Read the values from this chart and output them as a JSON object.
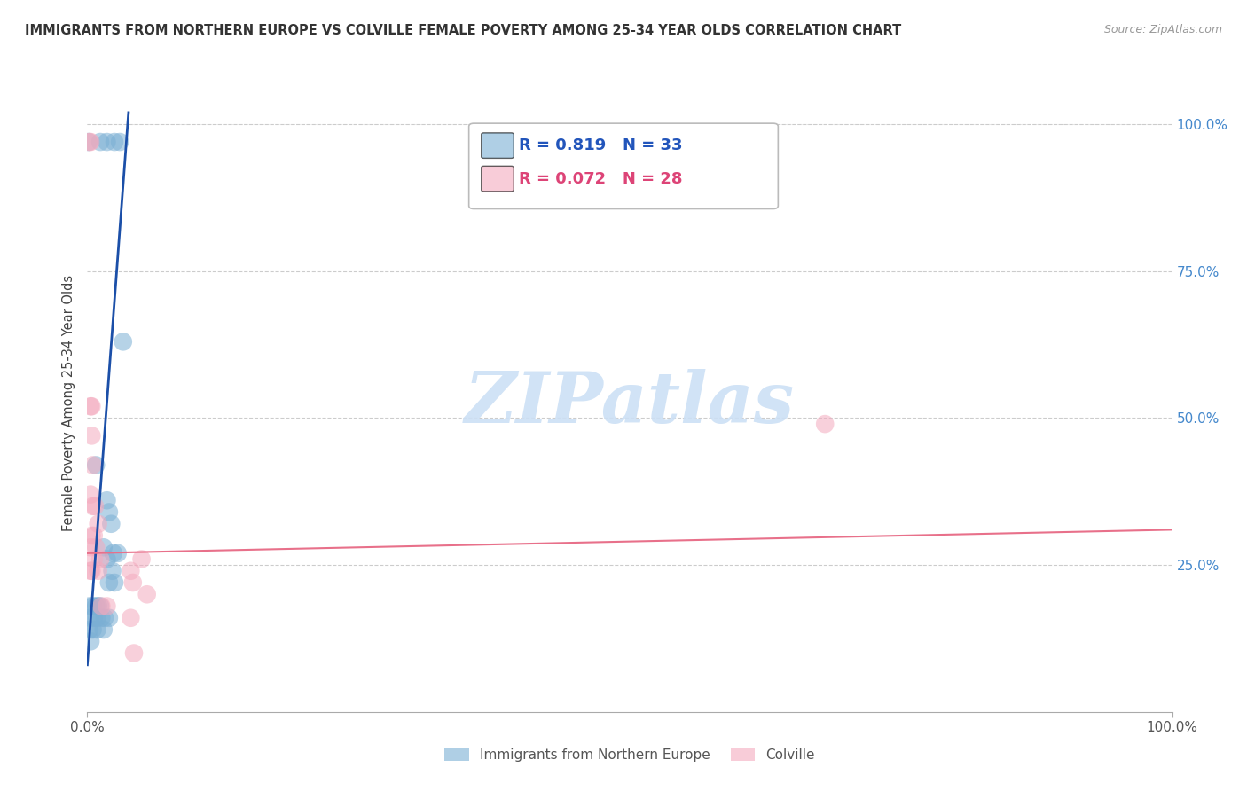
{
  "title": "IMMIGRANTS FROM NORTHERN EUROPE VS COLVILLE FEMALE POVERTY AMONG 25-34 YEAR OLDS CORRELATION CHART",
  "source": "Source: ZipAtlas.com",
  "ylabel": "Female Poverty Among 25-34 Year Olds",
  "legend1_label": "Immigrants from Northern Europe",
  "legend2_label": "Colville",
  "R_blue": 0.819,
  "N_blue": 33,
  "R_pink": 0.072,
  "N_pink": 28,
  "blue_color": "#7BAFD4",
  "pink_color": "#F4AABE",
  "trendline_blue": "#1B4FA8",
  "trendline_pink": "#E8708A",
  "blue_points": [
    [
      0.001,
      0.97
    ],
    [
      0.012,
      0.97
    ],
    [
      0.018,
      0.97
    ],
    [
      0.025,
      0.97
    ],
    [
      0.03,
      0.97
    ],
    [
      0.033,
      0.63
    ],
    [
      0.008,
      0.42
    ],
    [
      0.018,
      0.36
    ],
    [
      0.02,
      0.34
    ],
    [
      0.022,
      0.32
    ],
    [
      0.015,
      0.28
    ],
    [
      0.024,
      0.27
    ],
    [
      0.028,
      0.27
    ],
    [
      0.018,
      0.26
    ],
    [
      0.023,
      0.24
    ],
    [
      0.02,
      0.22
    ],
    [
      0.025,
      0.22
    ],
    [
      0.002,
      0.18
    ],
    [
      0.005,
      0.18
    ],
    [
      0.008,
      0.18
    ],
    [
      0.01,
      0.18
    ],
    [
      0.012,
      0.18
    ],
    [
      0.003,
      0.16
    ],
    [
      0.006,
      0.16
    ],
    [
      0.009,
      0.16
    ],
    [
      0.013,
      0.16
    ],
    [
      0.016,
      0.16
    ],
    [
      0.02,
      0.16
    ],
    [
      0.002,
      0.14
    ],
    [
      0.005,
      0.14
    ],
    [
      0.009,
      0.14
    ],
    [
      0.015,
      0.14
    ],
    [
      0.003,
      0.12
    ]
  ],
  "pink_points": [
    [
      0.002,
      0.97
    ],
    [
      0.003,
      0.97
    ],
    [
      0.003,
      0.52
    ],
    [
      0.004,
      0.52
    ],
    [
      0.004,
      0.47
    ],
    [
      0.005,
      0.42
    ],
    [
      0.003,
      0.37
    ],
    [
      0.005,
      0.35
    ],
    [
      0.007,
      0.35
    ],
    [
      0.01,
      0.32
    ],
    [
      0.004,
      0.3
    ],
    [
      0.006,
      0.3
    ],
    [
      0.003,
      0.28
    ],
    [
      0.008,
      0.28
    ],
    [
      0.006,
      0.26
    ],
    [
      0.012,
      0.26
    ],
    [
      0.05,
      0.26
    ],
    [
      0.003,
      0.24
    ],
    [
      0.004,
      0.24
    ],
    [
      0.01,
      0.24
    ],
    [
      0.04,
      0.24
    ],
    [
      0.042,
      0.22
    ],
    [
      0.055,
      0.2
    ],
    [
      0.013,
      0.18
    ],
    [
      0.018,
      0.18
    ],
    [
      0.04,
      0.16
    ],
    [
      0.043,
      0.1
    ],
    [
      0.68,
      0.49
    ]
  ],
  "xmin": 0.0,
  "xmax": 1.0,
  "ymin": 0.0,
  "ymax": 1.05,
  "xticks": [
    0.0,
    1.0
  ],
  "xticklabels": [
    "0.0%",
    "100.0%"
  ],
  "yticks": [],
  "yticklabels": [],
  "right_yticks": [
    0.25,
    0.5,
    0.75,
    1.0
  ],
  "right_yticklabels": [
    "25.0%",
    "50.0%",
    "75.0%",
    "100.0%"
  ],
  "grid_yticks": [
    0.25,
    0.5,
    0.75,
    1.0
  ],
  "blue_trendline": [
    [
      0.0,
      0.08
    ],
    [
      0.038,
      1.02
    ]
  ],
  "pink_trendline": [
    [
      0.0,
      0.27
    ],
    [
      1.0,
      0.31
    ]
  ]
}
